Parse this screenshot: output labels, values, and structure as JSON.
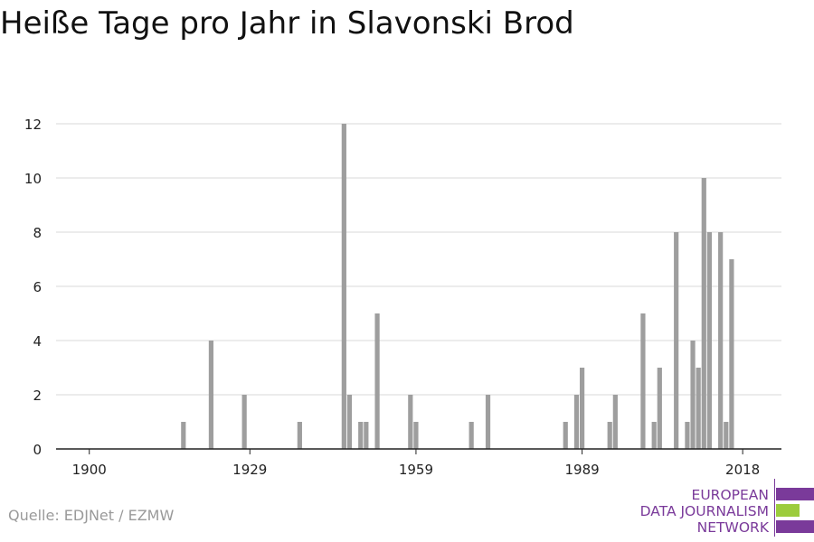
{
  "title": "Heiße Tage pro Jahr in Slavonski Brod",
  "source": "Quelle: EDJNet / EZMW",
  "logo": {
    "lines": [
      "EUROPEAN",
      "DATA JOURNALISM",
      "NETWORK"
    ],
    "colors": [
      "#7a3a9a",
      "#9ccc3c",
      "#7a3a9a"
    ]
  },
  "chart_data": {
    "type": "bar",
    "title": "Heiße Tage pro Jahr in Slavonski Brod",
    "xlabel": "",
    "ylabel": "",
    "xlim": [
      1894,
      2025
    ],
    "ylim": [
      0,
      12
    ],
    "x_ticks": [
      1900,
      1929,
      1959,
      1989,
      2018
    ],
    "y_ticks": [
      0,
      2,
      4,
      6,
      8,
      10,
      12
    ],
    "grid": true,
    "bar_color": "#9e9e9e",
    "x": [
      1917,
      1922,
      1928,
      1938,
      1946,
      1947,
      1949,
      1950,
      1952,
      1958,
      1959,
      1969,
      1972,
      1986,
      1988,
      1989,
      1994,
      1995,
      2000,
      2002,
      2003,
      2006,
      2008,
      2009,
      2010,
      2011,
      2012,
      2014,
      2015,
      2016
    ],
    "values": [
      1,
      4,
      2,
      1,
      12,
      2,
      1,
      1,
      5,
      2,
      1,
      1,
      2,
      1,
      2,
      3,
      1,
      2,
      5,
      1,
      3,
      8,
      1,
      4,
      3,
      10,
      8,
      8,
      1,
      7
    ]
  }
}
